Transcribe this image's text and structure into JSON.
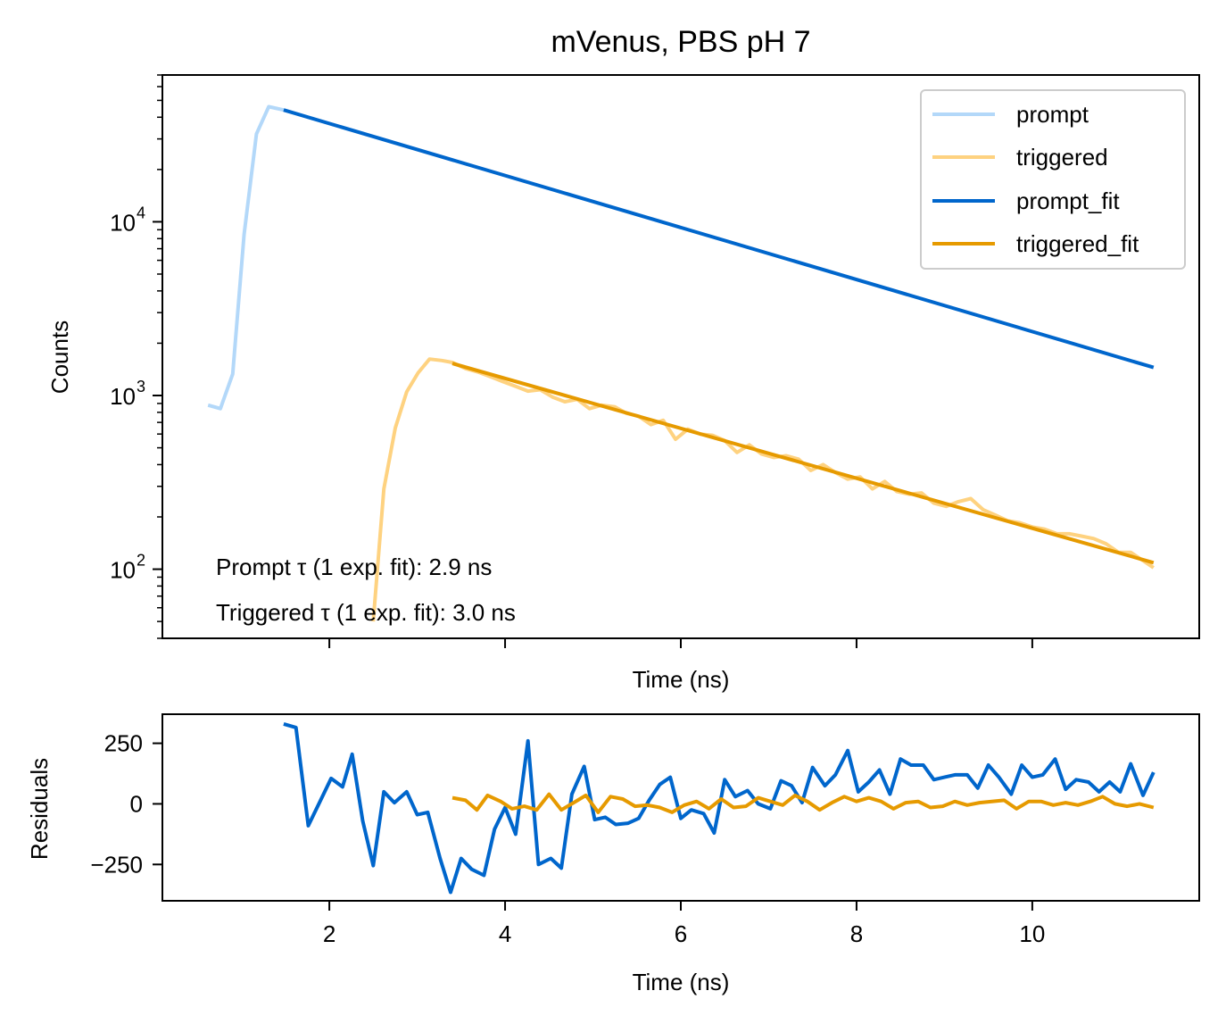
{
  "chart_data": [
    {
      "type": "line",
      "title": "mVenus, PBS pH 7",
      "xlabel": "Time (ns)",
      "ylabel": "Counts",
      "yscale": "log",
      "xlim": [
        0.1,
        11.9
      ],
      "ylim": [
        40,
        70000
      ],
      "xticks": [
        2,
        4,
        6,
        8,
        10
      ],
      "yticks": [
        {
          "value": 100,
          "base": "10",
          "exp": "2"
        },
        {
          "value": 1000,
          "base": "10",
          "exp": "3"
        },
        {
          "value": 10000,
          "base": "10",
          "exp": "4"
        }
      ],
      "legend_position": "top-right",
      "annotations": [
        "Prompt τ (1 exp. fit): 2.9 ns",
        "Triggered τ (1 exp. fit): 3.0 ns"
      ],
      "series": [
        {
          "name": "prompt",
          "color": "#b3d8f9",
          "x": [
            0.62,
            0.76,
            0.9,
            1.03,
            1.17,
            1.31,
            1.48
          ],
          "y": [
            880,
            840,
            1330,
            8500,
            32000,
            46000,
            44000
          ]
        },
        {
          "name": "triggered",
          "color": "#fed280",
          "x": [
            2.5,
            2.62,
            2.75,
            2.88,
            3.01,
            3.14,
            3.28,
            3.4,
            3.55,
            3.7,
            3.84,
            3.98,
            4.12,
            4.26,
            4.4,
            4.54,
            4.68,
            4.82,
            4.96,
            5.1,
            5.25,
            5.38,
            5.52,
            5.66,
            5.8,
            5.94,
            6.08,
            6.22,
            6.36,
            6.5,
            6.64,
            6.78,
            6.92,
            7.06,
            7.2,
            7.34,
            7.48,
            7.62,
            7.76,
            7.9,
            8.04,
            8.18,
            8.32,
            8.46,
            8.6,
            8.74,
            8.88,
            9.02,
            9.16,
            9.3,
            9.44,
            9.58,
            9.72,
            9.86,
            10.0,
            10.14,
            10.28,
            10.42,
            10.56,
            10.7,
            10.84,
            10.98,
            11.12,
            11.26,
            11.38
          ],
          "y": [
            50,
            290,
            650,
            1050,
            1350,
            1620,
            1590,
            1550,
            1430,
            1360,
            1280,
            1200,
            1130,
            1060,
            1080,
            980,
            920,
            950,
            840,
            880,
            860,
            790,
            760,
            680,
            720,
            560,
            640,
            600,
            590,
            550,
            470,
            520,
            460,
            440,
            450,
            430,
            370,
            400,
            360,
            330,
            340,
            290,
            320,
            280,
            270,
            275,
            240,
            230,
            245,
            255,
            220,
            205,
            190,
            185,
            175,
            170,
            160,
            160,
            155,
            150,
            140,
            125,
            125,
            112,
            102
          ]
        },
        {
          "name": "prompt_fit",
          "color": "#0066cc",
          "x": [
            1.48,
            11.38
          ],
          "y": [
            44000,
            1450
          ]
        },
        {
          "name": "triggered_fit",
          "color": "#e69a00",
          "x": [
            3.4,
            11.38
          ],
          "y": [
            1530,
            109
          ]
        }
      ]
    },
    {
      "type": "line",
      "xlabel": "Time (ns)",
      "ylabel": "Residuals",
      "xlim": [
        0.1,
        11.9
      ],
      "ylim": [
        -400,
        370
      ],
      "xticks": [
        2,
        4,
        6,
        8,
        10
      ],
      "yticks": [
        -250,
        0,
        250
      ],
      "ytick_labels": [
        "−250",
        "0",
        "250"
      ],
      "series": [
        {
          "color": "#0066cc",
          "x": [
            1.48,
            1.62,
            1.76,
            1.9,
            2.02,
            2.15,
            2.26,
            2.38,
            2.5,
            2.62,
            2.74,
            2.88,
            3.0,
            3.12,
            3.26,
            3.38,
            3.5,
            3.62,
            3.76,
            3.88,
            4.0,
            4.12,
            4.26,
            4.38,
            4.52,
            4.64,
            4.76,
            4.9,
            5.02,
            5.14,
            5.26,
            5.4,
            5.52,
            5.64,
            5.76,
            5.88,
            6.0,
            6.12,
            6.26,
            6.38,
            6.5,
            6.62,
            6.76,
            6.88,
            7.02,
            7.14,
            7.26,
            7.38,
            7.5,
            7.64,
            7.76,
            7.9,
            8.02,
            8.14,
            8.26,
            8.38,
            8.5,
            8.62,
            8.76,
            8.88,
            9.0,
            9.12,
            9.26,
            9.38,
            9.5,
            9.62,
            9.76,
            9.88,
            10.0,
            10.12,
            10.26,
            10.38,
            10.5,
            10.64,
            10.76,
            10.88,
            11.0,
            11.12,
            11.26,
            11.38
          ],
          "y": [
            330,
            315,
            -90,
            15,
            105,
            70,
            205,
            -70,
            -255,
            50,
            5,
            50,
            -45,
            -35,
            -225,
            -365,
            -225,
            -270,
            -295,
            -105,
            -15,
            -125,
            260,
            -250,
            -225,
            -265,
            40,
            155,
            -65,
            -55,
            -85,
            -80,
            -60,
            15,
            80,
            110,
            -60,
            -25,
            -40,
            -120,
            100,
            30,
            55,
            0,
            -20,
            95,
            75,
            5,
            150,
            75,
            120,
            220,
            50,
            90,
            140,
            40,
            185,
            160,
            160,
            100,
            110,
            120,
            120,
            65,
            160,
            110,
            40,
            160,
            110,
            120,
            185,
            60,
            100,
            90,
            50,
            90,
            50,
            165,
            35,
            130
          ]
        },
        {
          "color": "#e69a00",
          "x": [
            3.4,
            3.55,
            3.68,
            3.8,
            3.95,
            4.08,
            4.22,
            4.36,
            4.5,
            4.64,
            4.78,
            4.92,
            5.06,
            5.2,
            5.34,
            5.48,
            5.62,
            5.76,
            5.9,
            6.04,
            6.18,
            6.32,
            6.46,
            6.6,
            6.74,
            6.88,
            7.02,
            7.16,
            7.3,
            7.44,
            7.58,
            7.72,
            7.86,
            8.0,
            8.14,
            8.28,
            8.42,
            8.56,
            8.7,
            8.84,
            8.98,
            9.12,
            9.26,
            9.4,
            9.54,
            9.68,
            9.82,
            9.96,
            10.1,
            10.24,
            10.38,
            10.52,
            10.66,
            10.8,
            10.94,
            11.08,
            11.22,
            11.38
          ],
          "y": [
            25,
            15,
            -25,
            35,
            10,
            -20,
            -10,
            -25,
            40,
            -25,
            5,
            35,
            -35,
            30,
            20,
            -10,
            -5,
            -15,
            -35,
            -5,
            10,
            -20,
            20,
            -15,
            -10,
            25,
            10,
            -5,
            35,
            10,
            -25,
            5,
            30,
            10,
            25,
            10,
            -20,
            5,
            10,
            -15,
            -10,
            10,
            -5,
            5,
            10,
            15,
            -20,
            10,
            10,
            -5,
            5,
            -5,
            10,
            30,
            0,
            -10,
            0,
            -15
          ]
        }
      ]
    }
  ]
}
